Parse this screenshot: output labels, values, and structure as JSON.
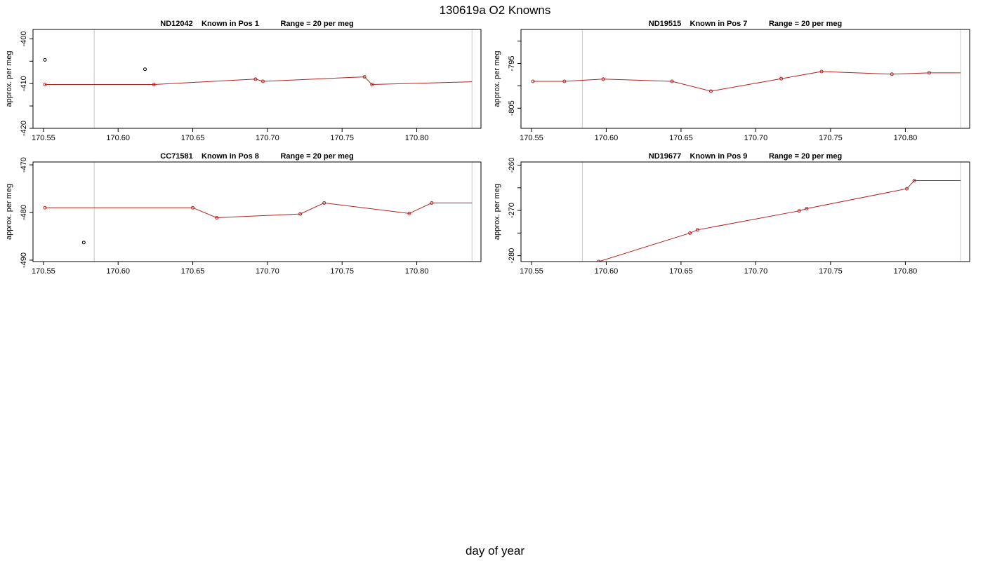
{
  "figure": {
    "title": "130619a   O2 Knowns",
    "xlabel": "day of year"
  },
  "colors": {
    "line": "#b22222",
    "points": "#b22222",
    "outlier_points": "#000000",
    "reference_lines": "#c8c8c8",
    "frame": "#000000"
  },
  "chart_data": [
    {
      "type": "line",
      "title": "ND12042    Known in Pos 1          Range = 20 per meg",
      "ylabel": "approx. per meg",
      "xlim": [
        170.543,
        170.843
      ],
      "ylim": [
        -420,
        -397.9
      ],
      "x_ticks": [
        170.55,
        170.6,
        170.65,
        170.7,
        170.75,
        170.8
      ],
      "x_tick_labels": [
        "170.55",
        "170.60",
        "170.65",
        "170.70",
        "170.75",
        "170.80"
      ],
      "y_ticks": [
        -400,
        -405,
        -410,
        -415,
        -420
      ],
      "y_tick_labels": [
        "-400",
        "",
        "-410",
        "",
        "-420"
      ],
      "vlines": [
        170.584,
        170.837
      ],
      "series": [
        {
          "x": [
            170.551,
            170.624,
            170.692,
            170.697,
            170.765,
            170.77,
            170.837
          ],
          "y": [
            -410.2,
            -410.2,
            -409.0,
            -409.5,
            -408.5,
            -410.2,
            -409.6
          ]
        }
      ],
      "outliers": {
        "x": [
          170.551,
          170.618
        ],
        "y": [
          -404.7,
          -406.8
        ]
      },
      "grid": false
    },
    {
      "type": "line",
      "title": "ND19515    Known in Pos 7          Range = 20 per meg",
      "ylabel": "approx. per meg",
      "xlim": [
        170.543,
        170.843
      ],
      "ylim": [
        -809.5,
        -787.4
      ],
      "x_ticks": [
        170.55,
        170.6,
        170.65,
        170.7,
        170.75,
        170.8
      ],
      "x_tick_labels": [
        "170.55",
        "170.60",
        "170.65",
        "170.70",
        "170.75",
        "170.80"
      ],
      "y_ticks": [
        -790,
        -795,
        -800,
        -805
      ],
      "y_tick_labels": [
        "",
        "-795",
        "",
        "-805"
      ],
      "vlines": [
        170.584,
        170.837
      ],
      "series": [
        {
          "x": [
            170.551,
            170.572,
            170.598,
            170.644,
            170.67,
            170.717,
            170.744,
            170.791,
            170.816,
            170.837
          ],
          "y": [
            -799.0,
            -799.0,
            -798.5,
            -799.0,
            -801.2,
            -798.4,
            -796.8,
            -797.4,
            -797.1,
            -797.1
          ]
        }
      ],
      "grid": false
    },
    {
      "type": "line",
      "title": "CC71581    Known in Pos 8          Range = 20 per meg",
      "ylabel": "approx. per meg",
      "xlim": [
        170.543,
        170.843
      ],
      "ylim": [
        -490.3,
        -469.4
      ],
      "x_ticks": [
        170.55,
        170.6,
        170.65,
        170.7,
        170.75,
        170.8
      ],
      "x_tick_labels": [
        "170.55",
        "170.60",
        "170.65",
        "170.70",
        "170.75",
        "170.80"
      ],
      "y_ticks": [
        -470,
        -480,
        -490
      ],
      "y_tick_labels": [
        "-470",
        "-480",
        "-490"
      ],
      "vlines": [
        170.584,
        170.837
      ],
      "series": [
        {
          "x": [
            170.551,
            170.65,
            170.666,
            170.722,
            170.738,
            170.795,
            170.81,
            170.837
          ],
          "y": [
            -479.0,
            -479.0,
            -481.1,
            -480.3,
            -478.0,
            -480.2,
            -478.0,
            -478.0
          ]
        }
      ],
      "outliers": {
        "x": [
          170.577
        ],
        "y": [
          -486.3
        ]
      },
      "grid": false
    },
    {
      "type": "line",
      "title": "ND19677    Known in Pos 9          Range = 20 per meg",
      "ylabel": "approx. per meg",
      "xlim": [
        170.543,
        170.843
      ],
      "ylim": [
        -281.3,
        -259.3
      ],
      "x_ticks": [
        170.55,
        170.6,
        170.65,
        170.7,
        170.75,
        170.8
      ],
      "x_tick_labels": [
        "170.55",
        "170.60",
        "170.65",
        "170.70",
        "170.75",
        "170.80"
      ],
      "y_ticks": [
        -260,
        -265,
        -270,
        -275,
        -280
      ],
      "y_tick_labels": [
        "-260",
        "",
        "-270",
        "",
        "-280"
      ],
      "vlines": [
        170.584,
        170.837
      ],
      "series": [
        {
          "x": [
            170.595,
            170.656,
            170.661,
            170.729,
            170.734,
            170.801,
            170.806,
            170.837
          ],
          "y": [
            -281.3,
            -275.0,
            -274.3,
            -270.1,
            -269.6,
            -265.2,
            -263.4,
            -263.4
          ]
        }
      ],
      "grid": false
    }
  ]
}
